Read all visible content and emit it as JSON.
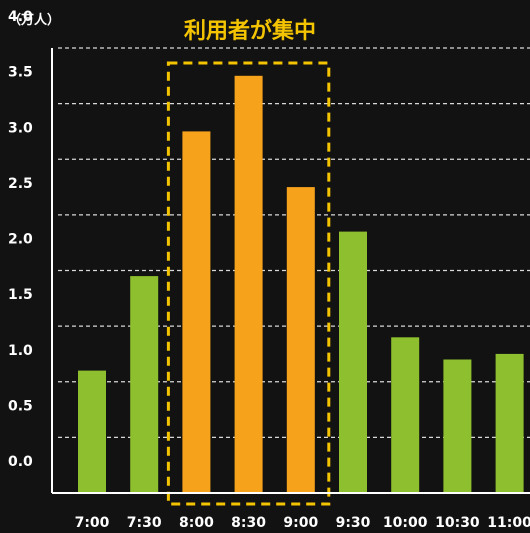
{
  "chart_data": {
    "type": "bar",
    "unit_label": "（万人）",
    "annotation": "利用者が集中",
    "categories": [
      "7:00",
      "7:30",
      "8:00",
      "8:30",
      "9:00",
      "9:30",
      "10:00",
      "10:30",
      "11:00"
    ],
    "values": [
      1.1,
      1.95,
      3.25,
      3.75,
      2.75,
      2.35,
      1.4,
      1.2,
      1.25
    ],
    "highlighted": [
      false,
      false,
      true,
      true,
      true,
      false,
      false,
      false,
      false
    ],
    "ylim": [
      0,
      4.0
    ],
    "yticks": [
      "0.0",
      "0.5",
      "1.0",
      "1.5",
      "2.0",
      "2.5",
      "3.0",
      "3.5",
      "4.0"
    ],
    "grid": true,
    "colors": {
      "normal": "#8dbf2e",
      "highlight": "#f7a21b",
      "annotation": "#f5c400",
      "grid": "#d8d8d8",
      "axis": "#ffffff",
      "background": "#121212"
    }
  }
}
